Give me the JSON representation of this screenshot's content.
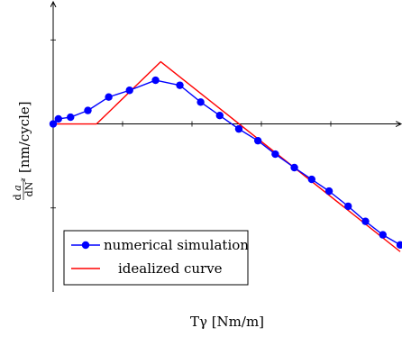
{
  "chart_data": {
    "type": "line",
    "xlabel": "Tγ [Nm/m]",
    "ylabel": "da_z/dN [nm/cycle]",
    "ylabel_parts": {
      "prefix": "d",
      "var": "a",
      "sub": "z",
      "over": "dN",
      "unit": "[nm/cycle]"
    },
    "xlim": [
      0,
      20
    ],
    "ylim": [
      -10,
      7
    ],
    "x_ticks": [
      0,
      4,
      8,
      12,
      16,
      20
    ],
    "y_ticks": [
      -5,
      0,
      5
    ],
    "tick_labels_shown": false,
    "grid": false,
    "legend_position": "bottom-left",
    "series": [
      {
        "name": "numerical simulation",
        "color": "#0000ff",
        "marker": "circle",
        "x": [
          0,
          0.3,
          1.0,
          2.0,
          3.2,
          4.4,
          5.9,
          7.3,
          8.5,
          9.6,
          10.7,
          11.8,
          12.8,
          13.9,
          14.9,
          15.9,
          17.0,
          18.0,
          19.0,
          20.0
        ],
        "y": [
          0,
          0.3,
          0.4,
          0.8,
          1.6,
          2.0,
          2.6,
          2.3,
          1.3,
          0.5,
          -0.3,
          -1.0,
          -1.8,
          -2.6,
          -3.3,
          -4.0,
          -4.9,
          -5.8,
          -6.6,
          -7.2
        ]
      },
      {
        "name": "idealized curve",
        "color": "#ff0000",
        "marker": "none",
        "x": [
          0,
          2.5,
          6.2,
          20.0
        ],
        "y": [
          0,
          0,
          3.7,
          -7.6
        ]
      }
    ]
  }
}
